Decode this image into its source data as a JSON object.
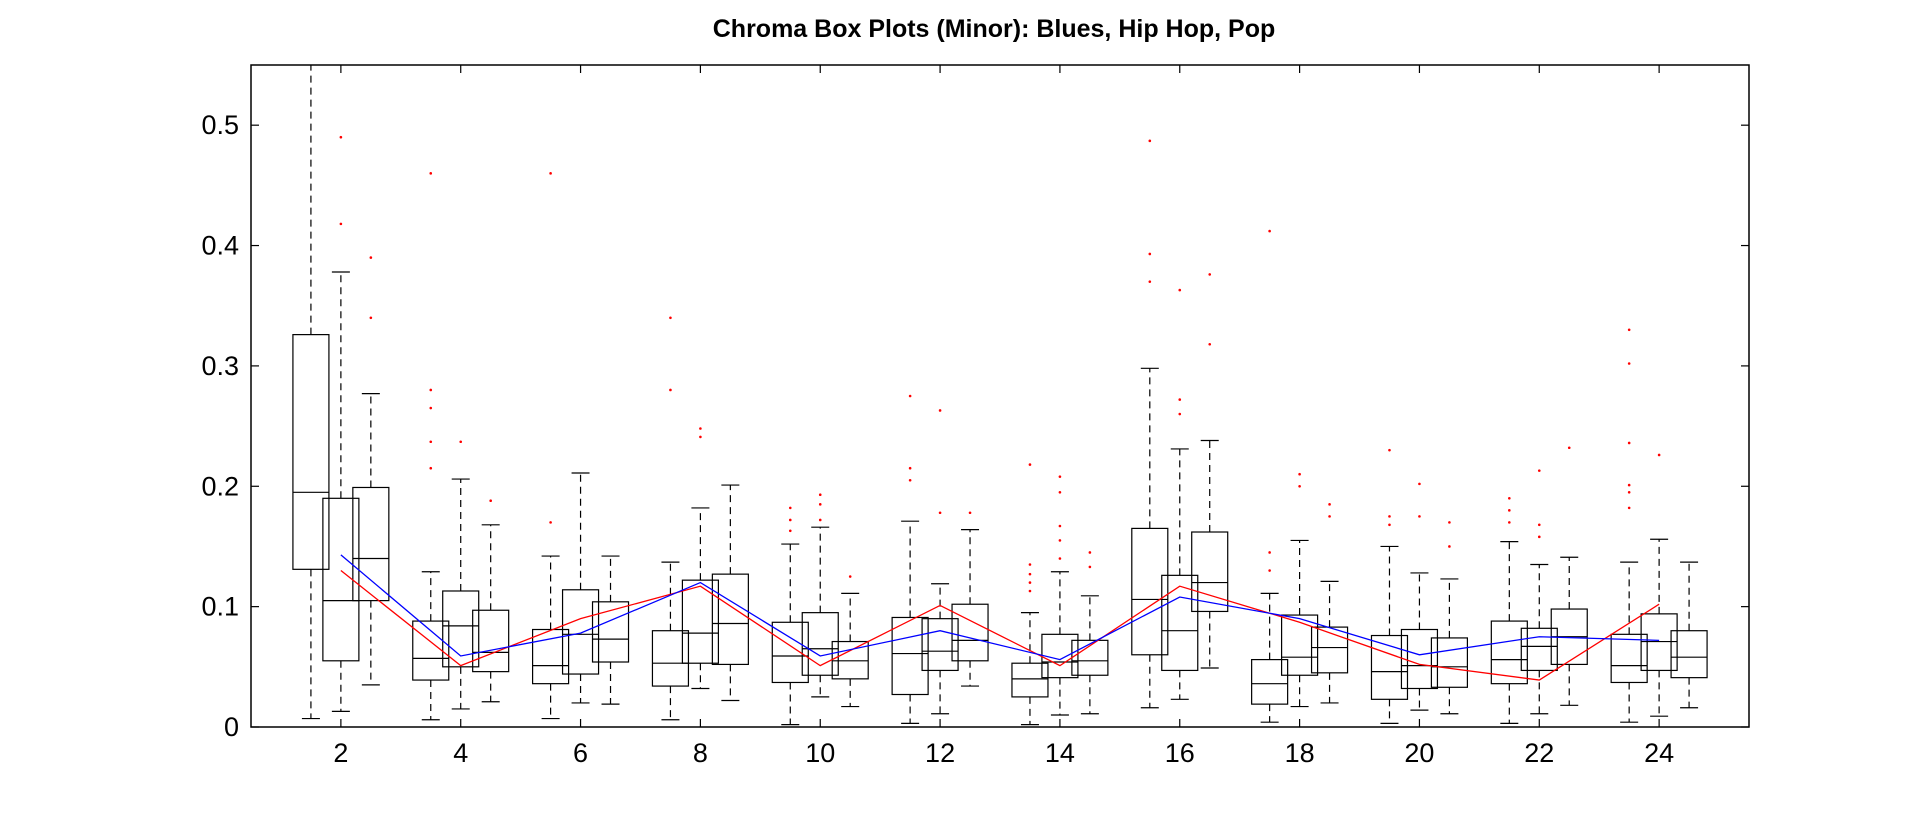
{
  "chart_data": {
    "type": "boxplot",
    "title": "Chroma Box Plots (Minor): Blues, Hip Hop, Pop",
    "xlabel": "",
    "ylabel": "",
    "xlim": [
      0.5,
      25.5
    ],
    "ylim": [
      0,
      0.55
    ],
    "xticks": [
      2,
      4,
      6,
      8,
      10,
      12,
      14,
      16,
      18,
      20,
      22,
      24
    ],
    "yticks": [
      0,
      0.1,
      0.2,
      0.3,
      0.4,
      0.5
    ],
    "xtick_labels": [
      "2",
      "4",
      "6",
      "8",
      "10",
      "12",
      "14",
      "16",
      "18",
      "20",
      "22",
      "24"
    ],
    "ytick_labels": [
      "0",
      "0.1",
      "0.2",
      "0.3",
      "0.4",
      "0.5"
    ],
    "grid": false,
    "colors": {
      "box": "#000000",
      "outlier": "#ff0000",
      "line_red": "#ff0000",
      "line_blue": "#0000ff"
    },
    "boxes": [
      {
        "x": 1.5,
        "whisker_low": 0.007,
        "q1": 0.131,
        "median": 0.195,
        "q3": 0.326,
        "whisker_high": 0.55,
        "outliers": []
      },
      {
        "x": 2,
        "whisker_low": 0.013,
        "q1": 0.055,
        "median": 0.105,
        "q3": 0.19,
        "whisker_high": 0.378,
        "outliers": [
          0.49,
          0.418
        ]
      },
      {
        "x": 2.5,
        "whisker_low": 0.035,
        "q1": 0.105,
        "median": 0.14,
        "q3": 0.199,
        "whisker_high": 0.277,
        "outliers": [
          0.39,
          0.34
        ]
      },
      {
        "x": 3.5,
        "whisker_low": 0.006,
        "q1": 0.039,
        "median": 0.057,
        "q3": 0.088,
        "whisker_high": 0.129,
        "outliers": [
          0.46,
          0.28,
          0.265,
          0.237,
          0.215
        ]
      },
      {
        "x": 4,
        "whisker_low": 0.015,
        "q1": 0.05,
        "median": 0.084,
        "q3": 0.113,
        "whisker_high": 0.206,
        "outliers": [
          0.237
        ]
      },
      {
        "x": 4.5,
        "whisker_low": 0.021,
        "q1": 0.046,
        "median": 0.062,
        "q3": 0.097,
        "whisker_high": 0.168,
        "outliers": [
          0.188
        ]
      },
      {
        "x": 5.5,
        "whisker_low": 0.007,
        "q1": 0.036,
        "median": 0.051,
        "q3": 0.081,
        "whisker_high": 0.142,
        "outliers": [
          0.46,
          0.17
        ]
      },
      {
        "x": 6,
        "whisker_low": 0.02,
        "q1": 0.044,
        "median": 0.077,
        "q3": 0.114,
        "whisker_high": 0.211,
        "outliers": []
      },
      {
        "x": 6.5,
        "whisker_low": 0.019,
        "q1": 0.054,
        "median": 0.073,
        "q3": 0.104,
        "whisker_high": 0.142,
        "outliers": []
      },
      {
        "x": 7.5,
        "whisker_low": 0.006,
        "q1": 0.034,
        "median": 0.053,
        "q3": 0.08,
        "whisker_high": 0.137,
        "outliers": [
          0.34,
          0.28
        ]
      },
      {
        "x": 8,
        "whisker_low": 0.032,
        "q1": 0.053,
        "median": 0.078,
        "q3": 0.122,
        "whisker_high": 0.182,
        "outliers": [
          0.248,
          0.241
        ]
      },
      {
        "x": 8.5,
        "whisker_low": 0.022,
        "q1": 0.052,
        "median": 0.086,
        "q3": 0.127,
        "whisker_high": 0.201,
        "outliers": []
      },
      {
        "x": 9.5,
        "whisker_low": 0.002,
        "q1": 0.037,
        "median": 0.059,
        "q3": 0.087,
        "whisker_high": 0.152,
        "outliers": [
          0.182,
          0.172,
          0.163
        ]
      },
      {
        "x": 10,
        "whisker_low": 0.025,
        "q1": 0.043,
        "median": 0.065,
        "q3": 0.095,
        "whisker_high": 0.166,
        "outliers": [
          0.193,
          0.185,
          0.172
        ]
      },
      {
        "x": 10.5,
        "whisker_low": 0.017,
        "q1": 0.04,
        "median": 0.055,
        "q3": 0.071,
        "whisker_high": 0.111,
        "outliers": [
          0.125
        ]
      },
      {
        "x": 11.5,
        "whisker_low": 0.003,
        "q1": 0.027,
        "median": 0.061,
        "q3": 0.091,
        "whisker_high": 0.171,
        "outliers": [
          0.275,
          0.215,
          0.205
        ]
      },
      {
        "x": 12,
        "whisker_low": 0.011,
        "q1": 0.047,
        "median": 0.063,
        "q3": 0.09,
        "whisker_high": 0.119,
        "outliers": [
          0.263,
          0.178
        ]
      },
      {
        "x": 12.5,
        "whisker_low": 0.034,
        "q1": 0.055,
        "median": 0.072,
        "q3": 0.102,
        "whisker_high": 0.164,
        "outliers": [
          0.178
        ]
      },
      {
        "x": 13.5,
        "whisker_low": 0.002,
        "q1": 0.025,
        "median": 0.04,
        "q3": 0.053,
        "whisker_high": 0.095,
        "outliers": [
          0.218,
          0.135,
          0.127,
          0.12,
          0.113
        ]
      },
      {
        "x": 14,
        "whisker_low": 0.01,
        "q1": 0.041,
        "median": 0.054,
        "q3": 0.077,
        "whisker_high": 0.129,
        "outliers": [
          0.208,
          0.195,
          0.167,
          0.155,
          0.14
        ]
      },
      {
        "x": 14.5,
        "whisker_low": 0.011,
        "q1": 0.043,
        "median": 0.055,
        "q3": 0.072,
        "whisker_high": 0.109,
        "outliers": [
          0.145,
          0.133
        ]
      },
      {
        "x": 15.5,
        "whisker_low": 0.016,
        "q1": 0.06,
        "median": 0.106,
        "q3": 0.165,
        "whisker_high": 0.298,
        "outliers": [
          0.487,
          0.393,
          0.37
        ]
      },
      {
        "x": 16,
        "whisker_low": 0.023,
        "q1": 0.047,
        "median": 0.08,
        "q3": 0.126,
        "whisker_high": 0.231,
        "outliers": [
          0.363,
          0.272,
          0.26
        ]
      },
      {
        "x": 16.5,
        "whisker_low": 0.049,
        "q1": 0.096,
        "median": 0.12,
        "q3": 0.162,
        "whisker_high": 0.238,
        "outliers": [
          0.376,
          0.318
        ]
      },
      {
        "x": 17.5,
        "whisker_low": 0.004,
        "q1": 0.019,
        "median": 0.036,
        "q3": 0.056,
        "whisker_high": 0.111,
        "outliers": [
          0.412,
          0.145,
          0.13
        ]
      },
      {
        "x": 18,
        "whisker_low": 0.017,
        "q1": 0.043,
        "median": 0.058,
        "q3": 0.093,
        "whisker_high": 0.155,
        "outliers": [
          0.21,
          0.2
        ]
      },
      {
        "x": 18.5,
        "whisker_low": 0.02,
        "q1": 0.045,
        "median": 0.066,
        "q3": 0.083,
        "whisker_high": 0.121,
        "outliers": [
          0.185,
          0.175
        ]
      },
      {
        "x": 19.5,
        "whisker_low": 0.003,
        "q1": 0.023,
        "median": 0.046,
        "q3": 0.076,
        "whisker_high": 0.15,
        "outliers": [
          0.23,
          0.175,
          0.168
        ]
      },
      {
        "x": 20,
        "whisker_low": 0.014,
        "q1": 0.032,
        "median": 0.051,
        "q3": 0.081,
        "whisker_high": 0.128,
        "outliers": [
          0.202,
          0.175
        ]
      },
      {
        "x": 20.5,
        "whisker_low": 0.011,
        "q1": 0.033,
        "median": 0.05,
        "q3": 0.074,
        "whisker_high": 0.123,
        "outliers": [
          0.17,
          0.15
        ]
      },
      {
        "x": 21.5,
        "whisker_low": 0.003,
        "q1": 0.036,
        "median": 0.056,
        "q3": 0.088,
        "whisker_high": 0.154,
        "outliers": [
          0.19,
          0.18,
          0.17
        ]
      },
      {
        "x": 22,
        "whisker_low": 0.011,
        "q1": 0.047,
        "median": 0.067,
        "q3": 0.082,
        "whisker_high": 0.135,
        "outliers": [
          0.213,
          0.168,
          0.158
        ]
      },
      {
        "x": 22.5,
        "whisker_low": 0.018,
        "q1": 0.052,
        "median": 0.075,
        "q3": 0.098,
        "whisker_high": 0.141,
        "outliers": [
          0.232
        ]
      },
      {
        "x": 23.5,
        "whisker_low": 0.004,
        "q1": 0.037,
        "median": 0.051,
        "q3": 0.077,
        "whisker_high": 0.137,
        "outliers": [
          0.33,
          0.302,
          0.236,
          0.201,
          0.195,
          0.182
        ]
      },
      {
        "x": 24,
        "whisker_low": 0.009,
        "q1": 0.047,
        "median": 0.071,
        "q3": 0.094,
        "whisker_high": 0.156,
        "outliers": [
          0.226
        ]
      },
      {
        "x": 24.5,
        "whisker_low": 0.016,
        "q1": 0.041,
        "median": 0.058,
        "q3": 0.08,
        "whisker_high": 0.137,
        "outliers": []
      }
    ],
    "series": [
      {
        "color": "#ff0000",
        "x": [
          2,
          4,
          6,
          8,
          10,
          12,
          14,
          16,
          18,
          20,
          22,
          24
        ],
        "values": [
          0.13,
          0.051,
          0.09,
          0.117,
          0.051,
          0.101,
          0.051,
          0.117,
          0.087,
          0.052,
          0.039,
          0.102
        ]
      },
      {
        "color": "#0000ff",
        "x": [
          2,
          4,
          6,
          8,
          10,
          12,
          14,
          16,
          18,
          20,
          22,
          24
        ],
        "values": [
          0.143,
          0.059,
          0.078,
          0.12,
          0.059,
          0.08,
          0.056,
          0.108,
          0.09,
          0.06,
          0.075,
          0.072
        ]
      }
    ]
  }
}
